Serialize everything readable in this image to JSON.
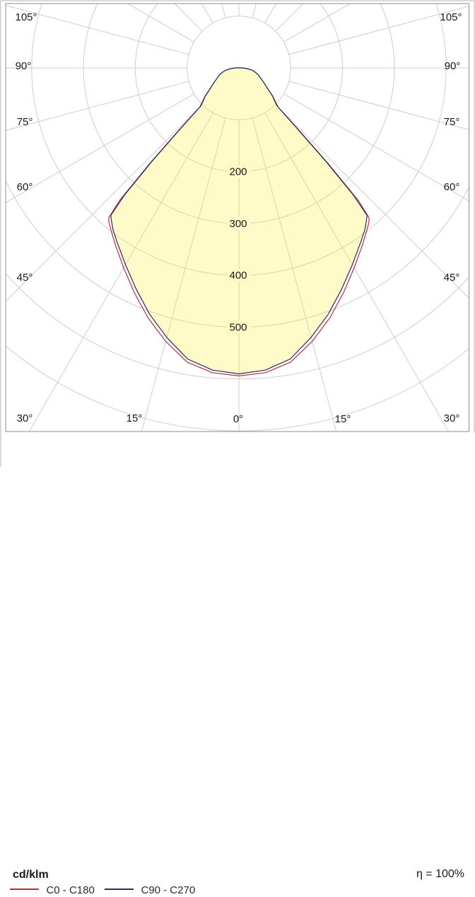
{
  "chart_data": {
    "type": "polar",
    "subtype": "luminaire-light-distribution",
    "units_label": "cd/klm",
    "efficiency_label": "η = 100%",
    "angle_tick_labels": [
      "105°",
      "90°",
      "75°",
      "60°",
      "45°",
      "30°",
      "15°",
      "0°"
    ],
    "ring_values": [
      100,
      200,
      300,
      400,
      500,
      600,
      700
    ],
    "ring_label_values": [
      "200",
      "300",
      "400",
      "500"
    ],
    "ray_step_deg": 15,
    "gamma_deg": [
      0,
      5,
      10,
      15,
      20,
      25,
      30,
      35,
      38,
      40,
      41,
      42,
      43,
      44,
      45,
      47,
      50,
      53,
      55,
      60,
      65,
      70,
      75,
      80,
      85,
      90,
      95,
      100,
      105
    ],
    "series": [
      {
        "name": "C0 - C180",
        "color": "#b03038",
        "values": [
          594,
          590,
          576,
          546,
          513,
          478,
          445,
          416,
          400,
          390,
          383,
          345,
          255,
          165,
          107,
          97,
          86,
          73,
          67,
          55,
          46,
          40,
          33,
          26,
          16,
          7,
          2,
          1,
          0
        ]
      },
      {
        "name": "C90 - C270",
        "color": "#282a62",
        "values": [
          590,
          585,
          570,
          538,
          505,
          470,
          438,
          410,
          395,
          383,
          377,
          330,
          243,
          157,
          105,
          95,
          85,
          72,
          66,
          55,
          46,
          40,
          33,
          26,
          16,
          7,
          2,
          1,
          0
        ]
      }
    ],
    "fill_color": "rgba(250,242,60,0.28)",
    "fill_solid_equivalent": "#fcfac5",
    "grid_color": "#cdcdcd",
    "frame_color": "#8c8c8c",
    "text_color": "#1a1a1a",
    "axis_note": "gamma measured from nadir (0° down), symmetric both sides, max displayed ring 700 cd/klm"
  },
  "legend": {
    "units_label": "cd/klm",
    "items": [
      {
        "label": "C0 - C180"
      },
      {
        "label": "C90 - C270"
      }
    ],
    "efficiency_label": "η = 100%"
  }
}
